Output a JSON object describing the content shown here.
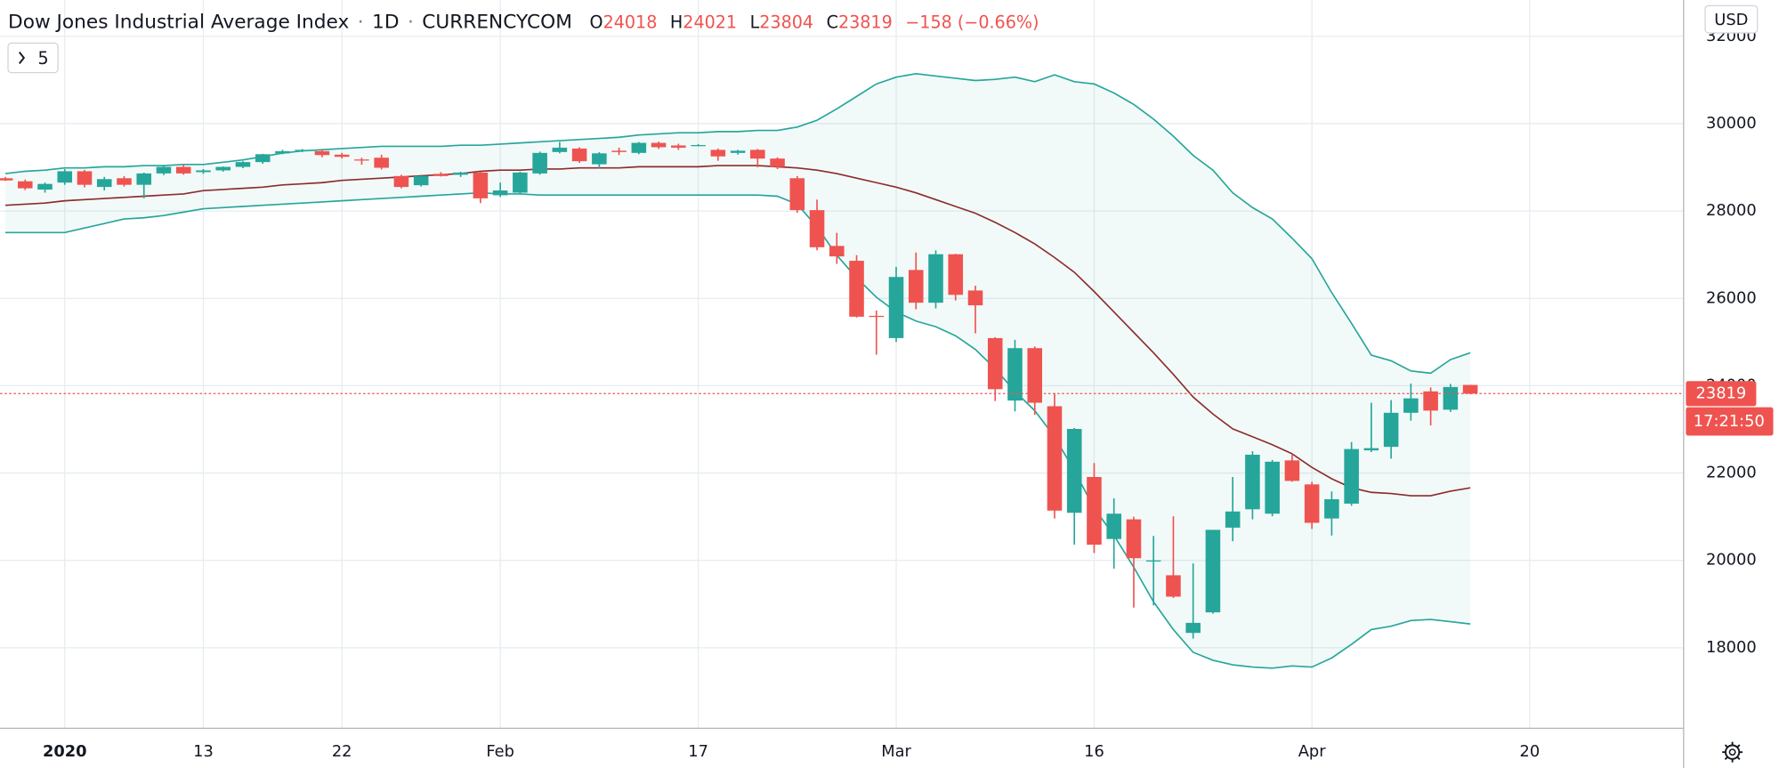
{
  "header": {
    "symbol": "Dow Jones Industrial Average Index",
    "separator": "·",
    "interval": "1D",
    "exchange": "CURRENCYCOM",
    "o": "O",
    "h": "H",
    "l": "L",
    "c": "C",
    "change": "−158 (−0.66%)"
  },
  "indicators_button": "5",
  "chart_data": {
    "type": "candlestick",
    "categories": [
      null,
      null,
      null,
      "2020",
      null,
      null,
      null,
      null,
      null,
      null,
      "13",
      null,
      null,
      null,
      null,
      null,
      null,
      "22",
      null,
      null,
      null,
      null,
      null,
      null,
      null,
      "Feb",
      null,
      null,
      null,
      null,
      null,
      null,
      null,
      null,
      null,
      "17",
      null,
      null,
      null,
      null,
      null,
      null,
      null,
      null,
      null,
      "Mar",
      null,
      null,
      null,
      null,
      null,
      null,
      null,
      null,
      null,
      "16",
      null,
      null,
      null,
      null,
      null,
      null,
      null,
      null,
      null,
      null,
      "Apr",
      null,
      null,
      null,
      null,
      null,
      null,
      null,
      null,
      null,
      null,
      "20"
    ],
    "open": [
      28750,
      28680,
      28490,
      28650,
      28910,
      28550,
      28750,
      28600,
      28860,
      29010,
      28890,
      28930,
      29010,
      29120,
      29320,
      29380,
      29370,
      29290,
      29180,
      29220,
      28800,
      28590,
      28850,
      28830,
      28880,
      28360,
      28420,
      28860,
      29350,
      29430,
      29070,
      29380,
      29330,
      29560,
      29500,
      29500,
      29400,
      29330,
      29400,
      29200,
      28750,
      28020,
      27200,
      26860,
      25600,
      25090,
      26650,
      25900,
      27010,
      26180,
      25090,
      23660,
      24860,
      23530,
      21090,
      21910,
      20490,
      20940,
      19990,
      19660,
      18340,
      18810,
      20750,
      21170,
      21070,
      22290,
      21740,
      20960,
      21300,
      22520,
      22600,
      23380,
      23870,
      23450,
      24018,
      null,
      null,
      null
    ],
    "high": [
      28780,
      28720,
      28650,
      28960,
      28940,
      28780,
      28800,
      28880,
      29040,
      29060,
      28960,
      29020,
      29140,
      29310,
      29400,
      29420,
      29410,
      29330,
      29220,
      29290,
      28830,
      28830,
      28890,
      28900,
      28900,
      28650,
      28900,
      29360,
      29580,
      29460,
      29350,
      29450,
      29580,
      29590,
      29540,
      29530,
      29430,
      29400,
      29420,
      29230,
      28800,
      28260,
      27500,
      26990,
      25720,
      26720,
      27050,
      27100,
      27020,
      26290,
      25110,
      25050,
      24900,
      23830,
      23030,
      22230,
      21420,
      21000,
      20560,
      21010,
      19930,
      20700,
      21910,
      22500,
      22300,
      22440,
      21800,
      21580,
      22710,
      23610,
      23670,
      24050,
      23960,
      24040,
      24021,
      null,
      null,
      null
    ],
    "low": [
      28690,
      28480,
      28420,
      28600,
      28540,
      28470,
      28560,
      28290,
      28820,
      28830,
      28850,
      28900,
      28980,
      29080,
      29300,
      29350,
      29230,
      29200,
      29060,
      28950,
      28520,
      28560,
      28790,
      28780,
      28180,
      28320,
      28380,
      28830,
      29320,
      29100,
      28980,
      29280,
      29300,
      29420,
      29400,
      29480,
      29150,
      29290,
      29000,
      28960,
      27960,
      27100,
      26790,
      25560,
      24710,
      25000,
      25750,
      25770,
      25950,
      25200,
      23650,
      23410,
      23330,
      20960,
      20360,
      20170,
      19810,
      18920,
      18970,
      19140,
      18210,
      18780,
      20440,
      20940,
      21010,
      21800,
      20720,
      20570,
      21250,
      22480,
      22330,
      23200,
      23090,
      23400,
      23804,
      null,
      null,
      null
    ],
    "close": [
      28700,
      28520,
      28620,
      28910,
      28600,
      28730,
      28600,
      28860,
      29010,
      28860,
      28930,
      29010,
      29120,
      29300,
      29370,
      29400,
      29280,
      29240,
      29160,
      28990,
      28550,
      28800,
      28800,
      28880,
      28290,
      28470,
      28880,
      29330,
      29450,
      29140,
      29320,
      29350,
      29560,
      29460,
      29450,
      29510,
      29250,
      29380,
      29200,
      29010,
      28020,
      27170,
      26960,
      25580,
      25590,
      26490,
      25900,
      27010,
      26080,
      25840,
      23920,
      24860,
      23610,
      21140,
      23010,
      20360,
      21070,
      20050,
      20000,
      19170,
      18570,
      20700,
      21120,
      22420,
      22260,
      21820,
      20860,
      21400,
      22550,
      22570,
      23380,
      23710,
      23430,
      23970,
      23819,
      null,
      null,
      null
    ],
    "upper_band": [
      28857,
      28909,
      28935,
      28987,
      28987,
      29013,
      29013,
      29039,
      29039,
      29065,
      29065,
      29117,
      29169,
      29247,
      29325,
      29377,
      29403,
      29429,
      29455,
      29481,
      29481,
      29481,
      29481,
      29506,
      29506,
      29532,
      29558,
      29584,
      29610,
      29636,
      29662,
      29688,
      29740,
      29766,
      29792,
      29792,
      29818,
      29818,
      29844,
      29844,
      29922,
      30078,
      30338,
      30623,
      30909,
      31065,
      31143,
      31091,
      31039,
      30987,
      31013,
      31065,
      30961,
      31117,
      30961,
      30909,
      30701,
      30441,
      30104,
      29714,
      29273,
      28935,
      28416,
      28078,
      27818,
      27376,
      26909,
      26130,
      25428,
      24701,
      24571,
      24337,
      24286,
      24597,
      24753,
      null,
      null,
      null
    ],
    "middle_band": [
      28130,
      28156,
      28182,
      28234,
      28260,
      28286,
      28312,
      28338,
      28364,
      28390,
      28467,
      28493,
      28519,
      28545,
      28597,
      28623,
      28649,
      28701,
      28727,
      28753,
      28779,
      28805,
      28831,
      28857,
      28909,
      28935,
      28935,
      28961,
      28961,
      28987,
      28987,
      28987,
      29013,
      29013,
      29013,
      29013,
      29039,
      29039,
      29039,
      29013,
      28987,
      28935,
      28857,
      28753,
      28649,
      28545,
      28416,
      28260,
      28104,
      27948,
      27740,
      27507,
      27247,
      26935,
      26597,
      26155,
      25688,
      25221,
      24753,
      24260,
      23740,
      23351,
      23013,
      22831,
      22649,
      22441,
      22130,
      21870,
      21662,
      21558,
      21532,
      21480,
      21480,
      21584,
      21662,
      null,
      null,
      null
    ],
    "lower_band": [
      27506,
      27506,
      27506,
      27506,
      27610,
      27714,
      27818,
      27844,
      27896,
      27974,
      28052,
      28078,
      28104,
      28130,
      28156,
      28182,
      28208,
      28234,
      28260,
      28286,
      28312,
      28338,
      28364,
      28390,
      28416,
      28390,
      28390,
      28364,
      28364,
      28364,
      28364,
      28364,
      28364,
      28364,
      28364,
      28364,
      28364,
      28364,
      28364,
      28338,
      28156,
      27636,
      26987,
      26468,
      26026,
      25688,
      25480,
      25351,
      25143,
      24831,
      24389,
      23870,
      23428,
      22831,
      22052,
      21195,
      20571,
      19844,
      19052,
      18416,
      17896,
      17714,
      17610,
      17558,
      17532,
      17584,
      17558,
      17766,
      18078,
      18416,
      18493,
      18623,
      18649,
      18597,
      18545,
      null,
      null,
      null
    ],
    "up_color": "#26a69a",
    "down_color": "#ef5350",
    "band_color": "#26a69a",
    "middle_color": "#8b2d2d",
    "ylim": [
      16156,
      32831
    ],
    "yticks": [
      18000,
      20000,
      22000,
      24000,
      26000,
      28000,
      30000,
      32000
    ],
    "grid": true,
    "currency": "USD",
    "countdown": "17:21:50"
  }
}
